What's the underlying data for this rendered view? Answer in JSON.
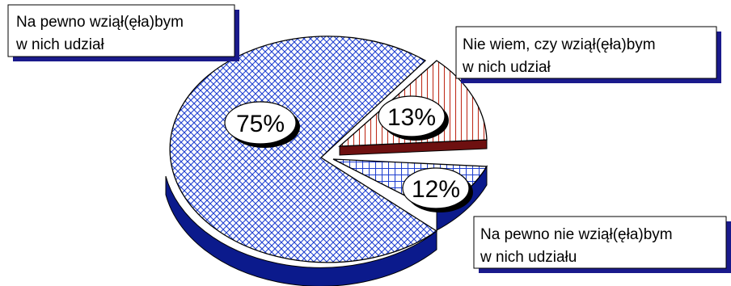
{
  "chart_data": {
    "type": "pie",
    "title": "",
    "categories": [
      "Na pewno wziął(ęła)bym w nich udział",
      "Nie wiem, czy wziął(ęła)bym w nich udział",
      "Na pewno nie wziął(ęła)bym w nich udziału"
    ],
    "values": [
      75,
      13,
      12
    ],
    "value_labels": [
      "75%",
      "13%",
      "12%"
    ],
    "legend": "callout boxes"
  },
  "labels": {
    "slice_1": {
      "line1": "Na pewno wziął(ęła)bym",
      "line2": "w nich udział"
    },
    "slice_2": {
      "line1": "Nie wiem, czy wziął(ęła)bym",
      "line2": "w nich udział"
    },
    "slice_3": {
      "line1": "Na pewno nie wziął(ęła)bym",
      "line2": "w nich udziału"
    }
  },
  "colors": {
    "pattern_blue": "#1f3fd0",
    "pattern_red": "#c0301e",
    "side_dark_blue": "#0b1a8c",
    "side_dark_red": "#6e1010",
    "shadow": "#1a1a8c"
  }
}
